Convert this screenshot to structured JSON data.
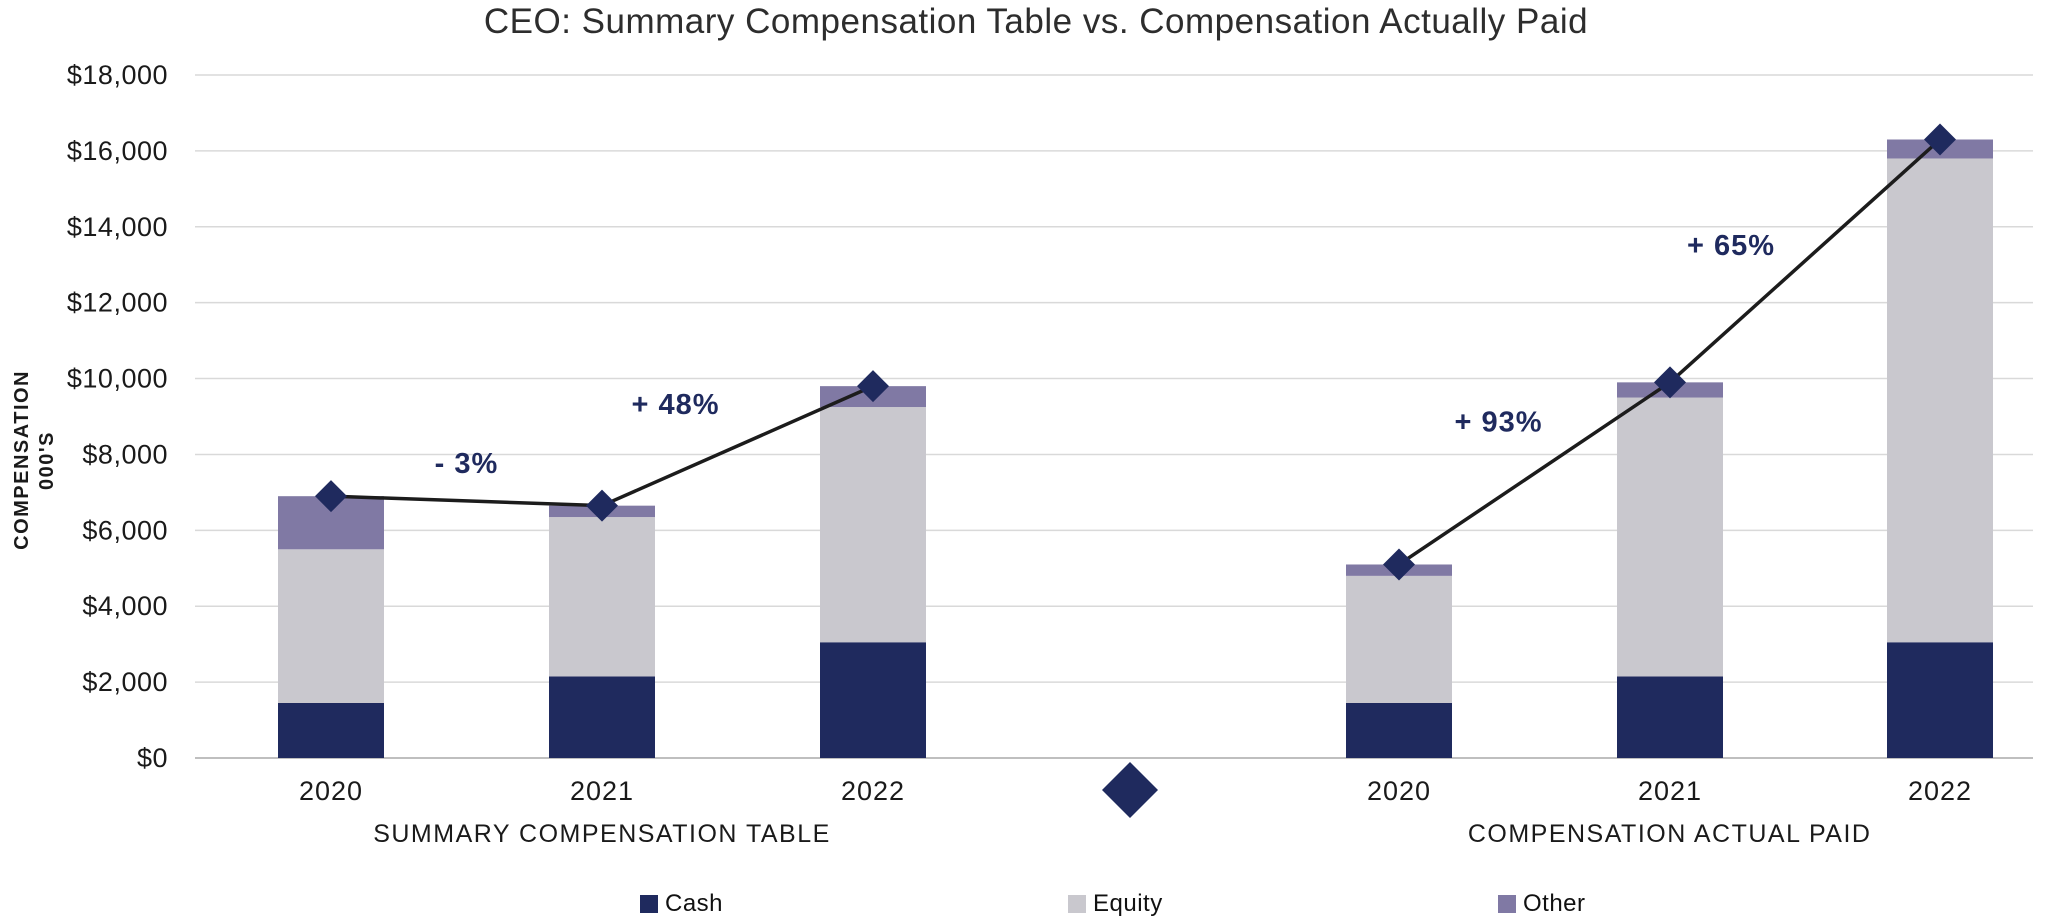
{
  "chart_data": {
    "type": "bar",
    "stacked": true,
    "title": "CEO: Summary Compensation Table vs. Compensation Actually Paid",
    "ylabel_lines": [
      "COMPENSATION",
      "000'S"
    ],
    "ylim": [
      0,
      18000
    ],
    "ytick_interval": 2000,
    "ytick_labels": [
      "$0",
      "$2,000",
      "$4,000",
      "$6,000",
      "$8,000",
      "$10,000",
      "$12,000",
      "$14,000",
      "$16,000",
      "$18,000"
    ],
    "grid": true,
    "legend_position": "bottom",
    "series_colors": {
      "Cash": "#1f2a5e",
      "Equity": "#c9c8ce",
      "Other": "#8079a4"
    },
    "line_color": "#1c1c1c",
    "marker_color": "#1f2a5e",
    "annotation_color": "#1f2a5e",
    "grid_color": "#d9d9d9",
    "axis_color": "#bfbfbf",
    "text_color": "#1a1a1a",
    "groups": [
      {
        "label": "SUMMARY COMPENSATION TABLE",
        "categories": [
          "2020",
          "2021",
          "2022"
        ],
        "series": [
          {
            "name": "Cash",
            "values": [
              1450,
              2150,
              3050
            ]
          },
          {
            "name": "Equity",
            "values": [
              4050,
              4200,
              6200
            ]
          },
          {
            "name": "Other",
            "values": [
              1400,
              300,
              550
            ]
          }
        ],
        "totals": [
          6900,
          6650,
          9800
        ],
        "pct_changes": [
          "- 3%",
          "+ 48%"
        ]
      },
      {
        "label": "COMPENSATION ACTUAL PAID",
        "categories": [
          "2020",
          "2021",
          "2022"
        ],
        "series": [
          {
            "name": "Cash",
            "values": [
              1450,
              2150,
              3050
            ]
          },
          {
            "name": "Equity",
            "values": [
              3350,
              7350,
              12750
            ]
          },
          {
            "name": "Other",
            "values": [
              300,
              400,
              500
            ]
          }
        ],
        "totals": [
          5100,
          9900,
          16300
        ],
        "pct_changes": [
          "+ 93%",
          "+ 65%"
        ]
      }
    ],
    "legend": [
      {
        "label": "Cash",
        "color": "#1f2a5e"
      },
      {
        "label": "Equity",
        "color": "#c9c8ce"
      },
      {
        "label": "Other",
        "color": "#8079a4"
      }
    ]
  }
}
